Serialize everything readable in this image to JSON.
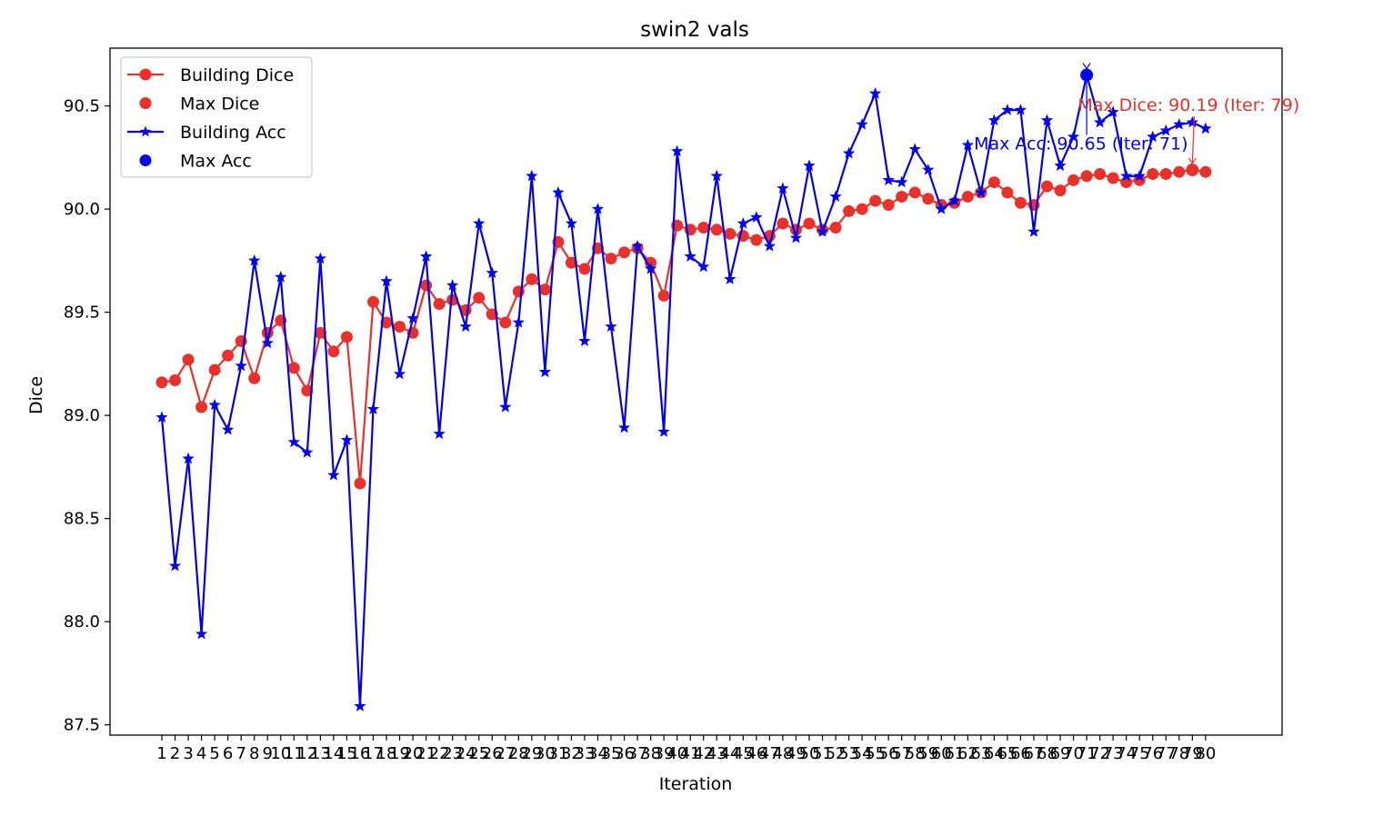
{
  "chart_data": {
    "type": "line",
    "title": "swin2 vals",
    "xlabel": "Iteration",
    "ylabel": "Dice",
    "ylim": [
      87.45,
      90.78
    ],
    "y_ticks": [
      "87.5",
      "88.0",
      "88.5",
      "89.0",
      "89.5",
      "90.0",
      "90.5"
    ],
    "x": [
      1,
      2,
      3,
      4,
      5,
      6,
      7,
      8,
      9,
      10,
      11,
      12,
      13,
      14,
      15,
      16,
      17,
      18,
      19,
      20,
      21,
      22,
      23,
      24,
      25,
      26,
      27,
      28,
      29,
      30,
      31,
      32,
      33,
      34,
      35,
      36,
      37,
      38,
      39,
      40,
      41,
      42,
      43,
      44,
      45,
      46,
      47,
      48,
      49,
      50,
      51,
      52,
      53,
      54,
      55,
      56,
      57,
      58,
      59,
      60,
      61,
      62,
      63,
      64,
      65,
      66,
      67,
      68,
      69,
      70,
      71,
      72,
      73,
      74,
      75,
      76,
      77,
      78,
      79,
      80
    ],
    "series": [
      {
        "name": "Building Dice",
        "color": "#e8312a",
        "marker": "circle",
        "values": [
          89.16,
          89.17,
          89.27,
          89.04,
          89.22,
          89.29,
          89.36,
          89.18,
          89.4,
          89.46,
          89.23,
          89.12,
          89.4,
          89.31,
          89.38,
          88.67,
          89.55,
          89.45,
          89.43,
          89.4,
          89.63,
          89.54,
          89.56,
          89.51,
          89.57,
          89.49,
          89.45,
          89.6,
          89.66,
          89.61,
          89.84,
          89.74,
          89.71,
          89.81,
          89.76,
          89.79,
          89.81,
          89.74,
          89.58,
          89.92,
          89.9,
          89.91,
          89.9,
          89.88,
          89.87,
          89.85,
          89.87,
          89.93,
          89.9,
          89.93,
          89.9,
          89.91,
          89.99,
          90.0,
          90.04,
          90.02,
          90.06,
          90.08,
          90.05,
          90.02,
          90.03,
          90.06,
          90.08,
          90.13,
          90.08,
          90.03,
          90.02,
          90.11,
          90.09,
          90.14,
          90.16,
          90.17,
          90.15,
          90.13,
          90.14,
          90.17,
          90.17,
          90.18,
          90.19,
          90.18
        ]
      },
      {
        "name": "Building Acc",
        "color": "#0000ee",
        "marker": "star",
        "values": [
          88.99,
          88.27,
          88.79,
          87.94,
          89.05,
          88.93,
          89.24,
          89.75,
          89.35,
          89.67,
          88.87,
          88.82,
          89.76,
          88.71,
          88.88,
          87.59,
          89.03,
          89.65,
          89.2,
          89.47,
          89.77,
          88.91,
          89.63,
          89.43,
          89.93,
          89.69,
          89.04,
          89.45,
          90.16,
          89.21,
          90.08,
          89.93,
          89.36,
          90.0,
          89.43,
          88.94,
          89.82,
          89.71,
          88.92,
          90.28,
          89.77,
          89.72,
          90.16,
          89.66,
          89.93,
          89.96,
          89.82,
          90.1,
          89.86,
          90.21,
          89.89,
          90.06,
          90.27,
          90.41,
          90.56,
          90.14,
          90.13,
          90.29,
          90.19,
          90.0,
          90.04,
          90.31,
          90.08,
          90.43,
          90.48,
          90.48,
          89.89,
          90.43,
          90.21,
          90.35,
          90.65,
          90.42,
          90.47,
          90.16,
          90.16,
          90.35,
          90.38,
          90.41,
          90.42,
          90.39
        ]
      }
    ],
    "max_points": [
      {
        "name": "Max Dice",
        "x": 79,
        "y": 90.19,
        "color": "#e8312a",
        "annotation": "Max Dice: 90.19 (Iter: 79)"
      },
      {
        "name": "Max Acc",
        "x": 71,
        "y": 90.65,
        "color": "#0000ee",
        "annotation": "Max Acc: 90.65 (Iter: 71)"
      }
    ],
    "legend_placement": "top-left",
    "grid": false
  }
}
